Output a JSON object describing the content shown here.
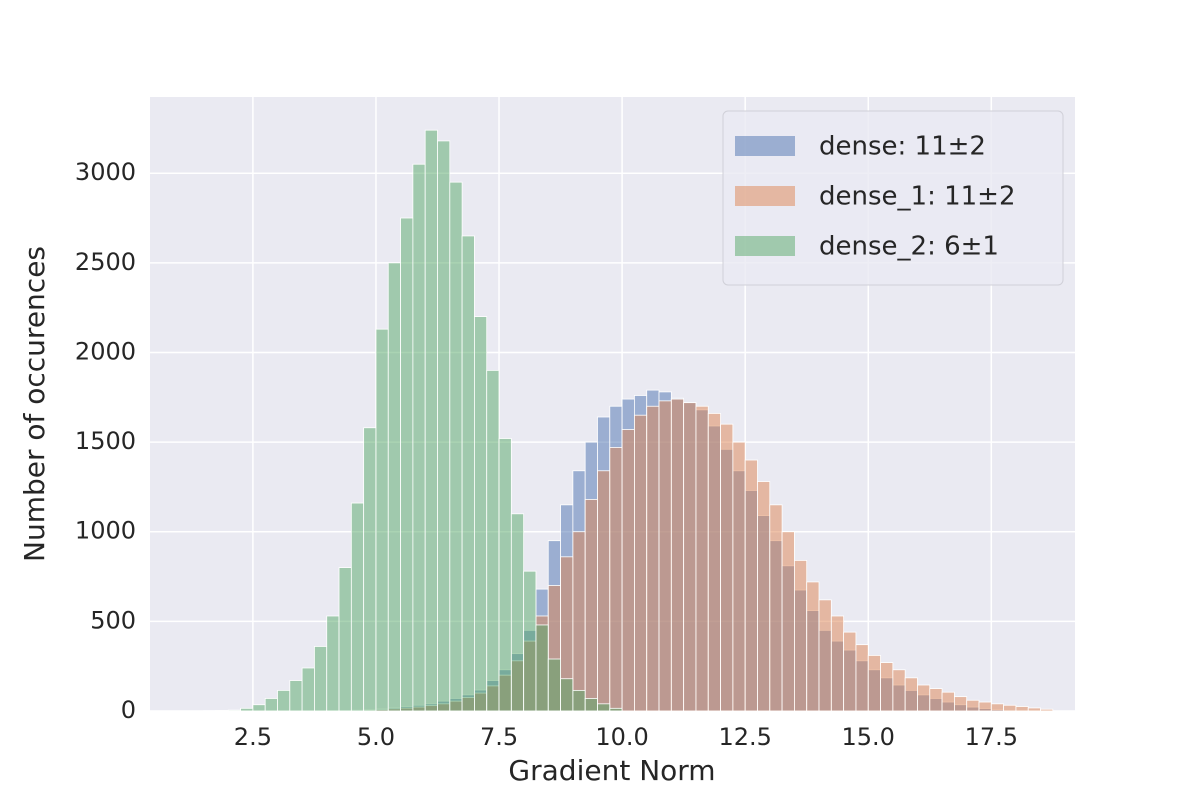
{
  "chart_data": {
    "type": "histogram",
    "xlabel": "Gradient Norm",
    "ylabel": "Number of occurences",
    "xlim": [
      0.41,
      19.2
    ],
    "ylim": [
      0,
      3425
    ],
    "xticks": [
      2.5,
      {
        "value": 5,
        "label": "5.0"
      },
      7.5,
      {
        "value": 10,
        "label": "10.0"
      },
      12.5,
      {
        "value": 15,
        "label": "15.0"
      },
      17.5
    ],
    "yticks": [
      0,
      500,
      1000,
      1500,
      2000,
      2500,
      3000
    ],
    "grid": true,
    "legend": "upper right",
    "alpha": 0.5,
    "series": [
      {
        "name": "dense: 11±2",
        "color": "#4c72b0",
        "bins": [
          4.0,
          4.25,
          4.5,
          4.75,
          5.0,
          5.25,
          5.5,
          5.75,
          6.0,
          6.25,
          6.5,
          6.75,
          7.0,
          7.25,
          7.5,
          7.75,
          8.0,
          8.25,
          8.5,
          8.75,
          9.0,
          9.25,
          9.5,
          9.75,
          10.0,
          10.25,
          10.5,
          10.75,
          11.0,
          11.25,
          11.5,
          11.75,
          12.0,
          12.25,
          12.5,
          12.75,
          13.0,
          13.25,
          13.5,
          13.75,
          14.0,
          14.25,
          14.5,
          14.75,
          15.0,
          15.25,
          15.5,
          15.75,
          16.0,
          16.25,
          16.5,
          16.75,
          17.0,
          17.25,
          17.5,
          17.75
        ],
        "values": [
          2,
          3,
          5,
          8,
          12,
          18,
          25,
          32,
          40,
          55,
          70,
          90,
          117,
          170,
          230,
          320,
          450,
          680,
          950,
          1150,
          1340,
          1500,
          1640,
          1700,
          1740,
          1760,
          1790,
          1780,
          1745,
          1720,
          1680,
          1590,
          1460,
          1340,
          1230,
          1090,
          950,
          810,
          675,
          560,
          450,
          390,
          340,
          280,
          230,
          185,
          145,
          115,
          90,
          70,
          50,
          35,
          22,
          14,
          8
        ]
      },
      {
        "name": "dense_1: 11±2",
        "color": "#dd8452",
        "bins": [
          4.0,
          4.25,
          4.5,
          4.75,
          5.0,
          5.25,
          5.5,
          5.75,
          6.0,
          6.25,
          6.5,
          6.75,
          7.0,
          7.25,
          7.5,
          7.75,
          8.0,
          8.25,
          8.5,
          8.75,
          9.0,
          9.25,
          9.5,
          9.75,
          10.0,
          10.25,
          10.5,
          10.75,
          11.0,
          11.25,
          11.5,
          11.75,
          12.0,
          12.25,
          12.5,
          12.75,
          13.0,
          13.25,
          13.5,
          13.75,
          14.0,
          14.25,
          14.5,
          14.75,
          15.0,
          15.25,
          15.5,
          15.75,
          16.0,
          16.25,
          16.5,
          16.75,
          17.0,
          17.25,
          17.5,
          17.75,
          18.0,
          18.25,
          18.5,
          18.75
        ],
        "values": [
          1,
          2,
          3,
          5,
          8,
          12,
          16,
          22,
          30,
          40,
          55,
          75,
          100,
          140,
          200,
          280,
          390,
          530,
          700,
          860,
          1000,
          1180,
          1340,
          1470,
          1570,
          1650,
          1700,
          1730,
          1740,
          1720,
          1700,
          1660,
          1600,
          1500,
          1400,
          1280,
          1150,
          1000,
          840,
          720,
          620,
          530,
          440,
          370,
          310,
          270,
          230,
          185,
          145,
          125,
          105,
          80,
          60,
          50,
          40,
          32,
          25,
          17,
          10
        ]
      },
      {
        "name": "dense_2: 6±1",
        "color": "#55a868",
        "bins": [
          1.5,
          1.75,
          2.0,
          2.25,
          2.5,
          2.75,
          3.0,
          3.25,
          3.5,
          3.75,
          4.0,
          4.25,
          4.5,
          4.75,
          5.0,
          5.25,
          5.5,
          5.75,
          6.0,
          6.25,
          6.5,
          6.75,
          7.0,
          7.25,
          7.5,
          7.75,
          8.0,
          8.25,
          8.5,
          8.75,
          9.0,
          9.25,
          9.5,
          9.75,
          10.0
        ],
        "values": [
          2,
          3,
          5,
          15,
          35,
          70,
          115,
          170,
          240,
          360,
          530,
          800,
          1160,
          1580,
          2130,
          2500,
          2750,
          3050,
          3240,
          3180,
          2950,
          2650,
          2200,
          1900,
          1520,
          1100,
          780,
          480,
          290,
          180,
          115,
          70,
          40,
          15
        ]
      }
    ]
  }
}
